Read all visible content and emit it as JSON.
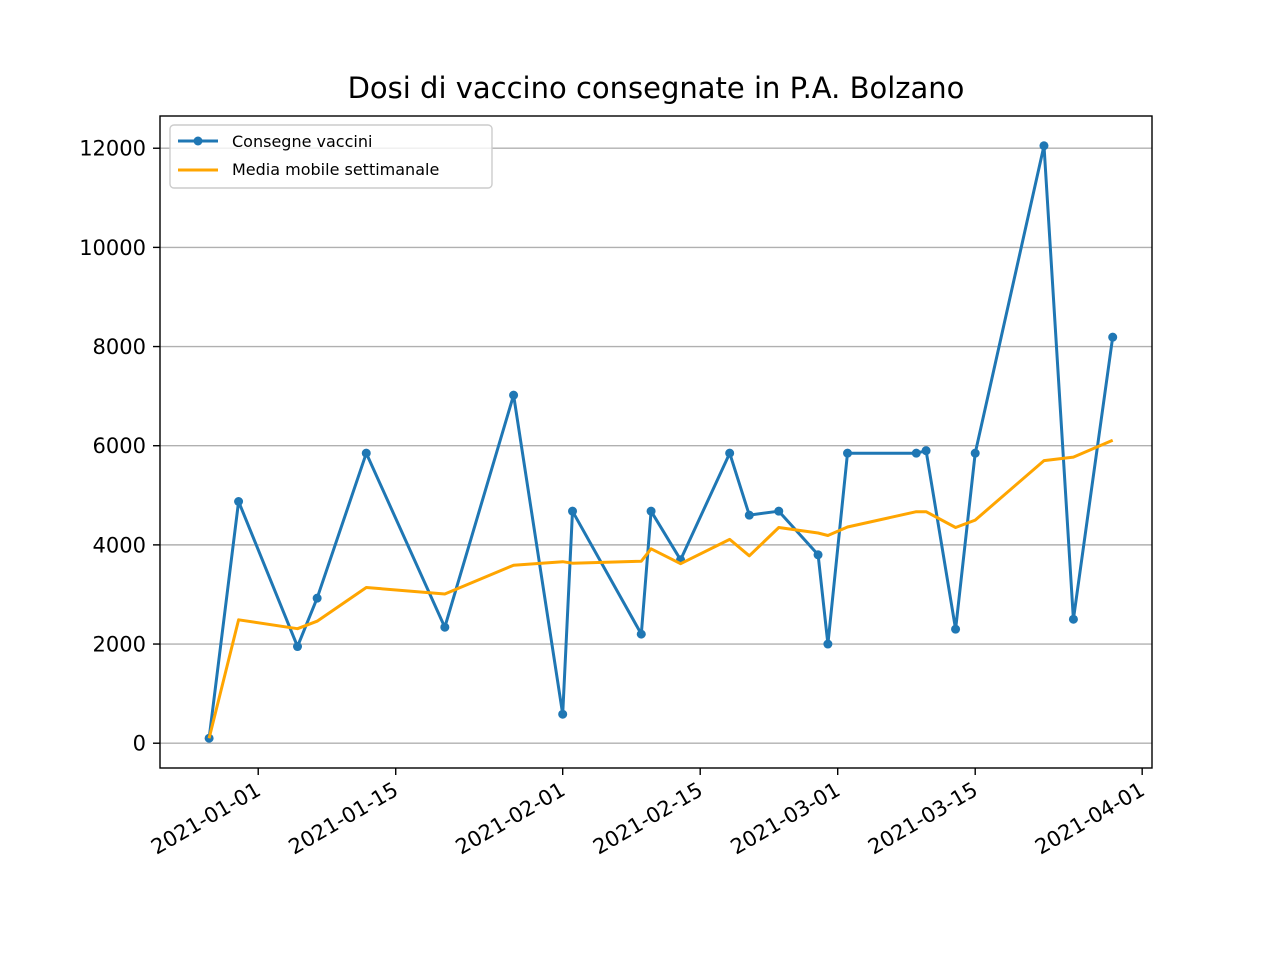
{
  "chart_data": {
    "type": "line",
    "title": "Dosi di vaccino consegnate in P.A. Bolzano",
    "xlabel": "",
    "ylabel": "",
    "x_axis_type": "date",
    "xlim": [
      "2020-12-22",
      "2021-04-02"
    ],
    "ylim": [
      -500,
      12650
    ],
    "x_ticks": [
      "2021-01-01",
      "2021-01-15",
      "2021-02-01",
      "2021-02-15",
      "2021-03-01",
      "2021-03-15",
      "2021-04-01"
    ],
    "y_ticks": [
      0,
      2000,
      4000,
      6000,
      8000,
      10000,
      12000
    ],
    "y_tick_labels": [
      "0",
      "2000",
      "4000",
      "6000",
      "8000",
      "10000",
      "12000"
    ],
    "grid": "y",
    "legend_position": "top-left",
    "colors": {
      "consegne": "#1f77b4",
      "media": "#ffa500"
    },
    "series": [
      {
        "name": "Consegne vaccini",
        "marker": "circle",
        "x": [
          "2020-12-27",
          "2020-12-30",
          "2021-01-05",
          "2021-01-07",
          "2021-01-12",
          "2021-01-20",
          "2021-01-27",
          "2021-02-01",
          "2021-02-02",
          "2021-02-09",
          "2021-02-10",
          "2021-02-13",
          "2021-02-18",
          "2021-02-20",
          "2021-02-23",
          "2021-02-27",
          "2021-02-28",
          "2021-03-02",
          "2021-03-09",
          "2021-03-10",
          "2021-03-13",
          "2021-03-15",
          "2021-03-22",
          "2021-03-25",
          "2021-03-29"
        ],
        "y": [
          100,
          4875,
          1950,
          2925,
          5850,
          2340,
          7020,
          585,
          4680,
          2200,
          4680,
          3700,
          5850,
          4600,
          4680,
          3800,
          2000,
          5850,
          5850,
          5900,
          2300,
          5850,
          12050,
          2500,
          8190
        ]
      },
      {
        "name": "Media mobile settimanale",
        "x": [
          "2020-12-27",
          "2020-12-30",
          "2021-01-05",
          "2021-01-07",
          "2021-01-12",
          "2021-01-20",
          "2021-01-27",
          "2021-02-01",
          "2021-02-02",
          "2021-02-09",
          "2021-02-10",
          "2021-02-13",
          "2021-02-18",
          "2021-02-20",
          "2021-02-23",
          "2021-02-27",
          "2021-02-28",
          "2021-03-02",
          "2021-03-09",
          "2021-03-10",
          "2021-03-13",
          "2021-03-15",
          "2021-03-22",
          "2021-03-25",
          "2021-03-29"
        ],
        "y": [
          100,
          2490,
          2310,
          2460,
          3140,
          3010,
          3590,
          3660,
          3630,
          3670,
          3920,
          3620,
          4110,
          3780,
          4350,
          4240,
          4190,
          4360,
          4670,
          4670,
          4350,
          4500,
          5700,
          5770,
          6110
        ]
      }
    ]
  }
}
